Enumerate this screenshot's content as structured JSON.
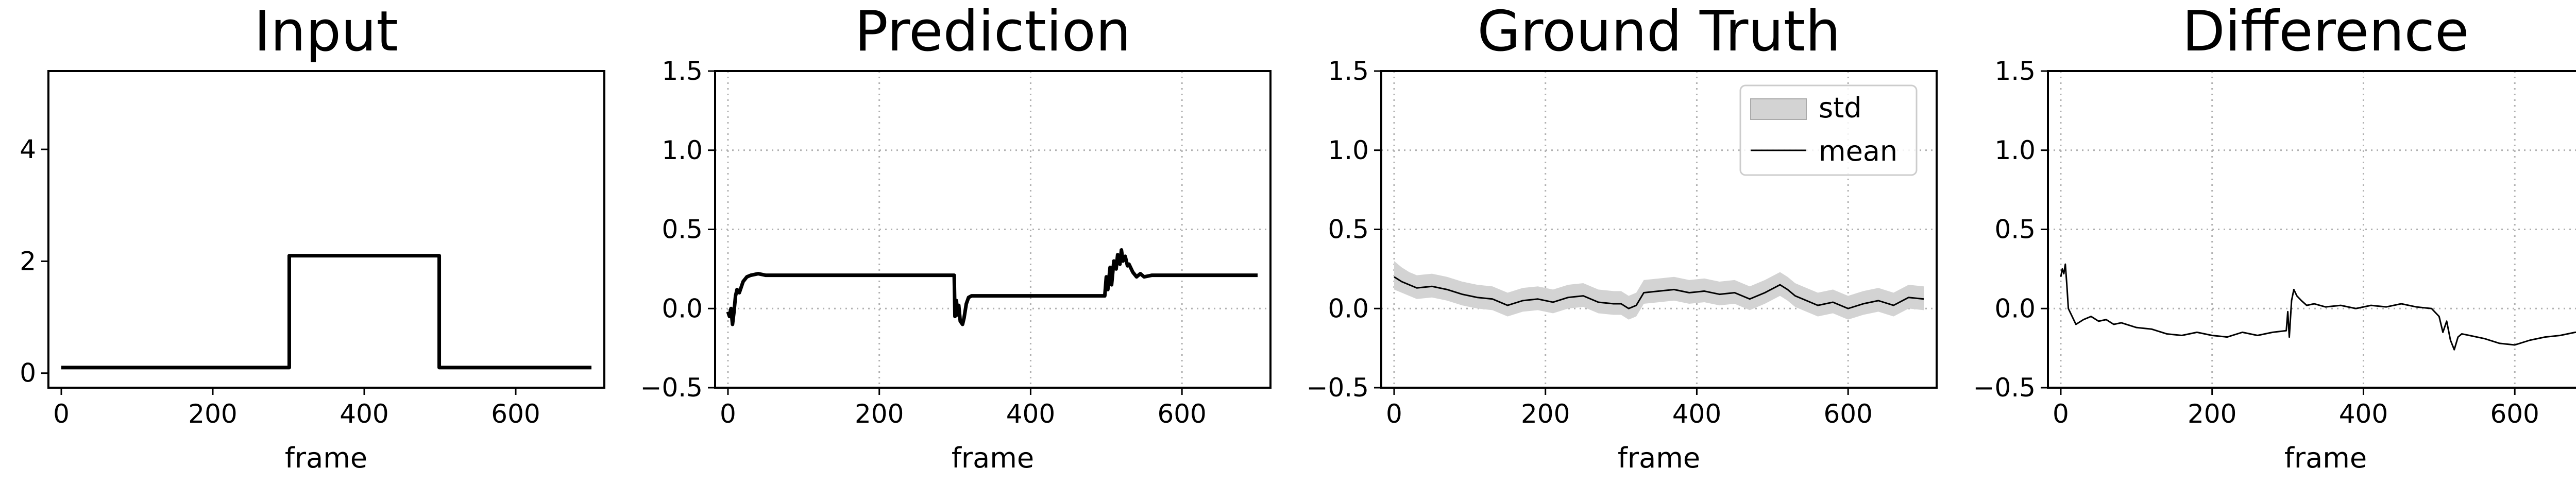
{
  "colors": {
    "line": "#000000",
    "band": "#d3d3d3",
    "grid": "#b0b0b0",
    "axes": "#000000"
  },
  "chart_data": [
    {
      "type": "line",
      "title": "Input",
      "xlabel": "frame",
      "ylabel": "",
      "grid": false,
      "xlim": [
        -17,
        717
      ],
      "ylim": [
        -0.26,
        5.4
      ],
      "xticks": [
        "0",
        "200",
        "400",
        "600"
      ],
      "yticks": [
        "0",
        "2",
        "4"
      ],
      "series": [
        {
          "x": [
            0,
            301,
            301,
            499,
            499,
            700
          ],
          "y": [
            0.1,
            0.1,
            2.1,
            2.1,
            0.1,
            0.1
          ]
        }
      ]
    },
    {
      "type": "line",
      "title": "Prediction",
      "xlabel": "frame",
      "ylabel": "",
      "grid": true,
      "xlim": [
        -17,
        717
      ],
      "ylim": [
        -0.5,
        1.5
      ],
      "xticks": [
        "0",
        "200",
        "400",
        "600"
      ],
      "yticks": [
        "−0.5",
        "0.0",
        "0.5",
        "1.0",
        "1.5"
      ],
      "series": [
        {
          "x": [
            0,
            2,
            4,
            6,
            8,
            10,
            12,
            15,
            20,
            25,
            30,
            40,
            50,
            100,
            200,
            299,
            300,
            302,
            303,
            305,
            307,
            310,
            312,
            315,
            318,
            322,
            330,
            350,
            400,
            498,
            500,
            502,
            505,
            507,
            510,
            513,
            515,
            518,
            520,
            522,
            525,
            528,
            530,
            535,
            540,
            545,
            550,
            560,
            580,
            600,
            650,
            700
          ],
          "y": [
            -0.02,
            -0.05,
            0.0,
            -0.1,
            -0.02,
            0.08,
            0.12,
            0.1,
            0.17,
            0.2,
            0.21,
            0.22,
            0.21,
            0.21,
            0.21,
            0.21,
            -0.05,
            0.05,
            -0.04,
            0.02,
            -0.08,
            -0.1,
            -0.06,
            0.03,
            0.07,
            0.08,
            0.08,
            0.08,
            0.08,
            0.08,
            0.2,
            0.12,
            0.26,
            0.15,
            0.3,
            0.25,
            0.34,
            0.28,
            0.37,
            0.3,
            0.33,
            0.27,
            0.28,
            0.23,
            0.2,
            0.22,
            0.2,
            0.21,
            0.21,
            0.21,
            0.21,
            0.21
          ]
        }
      ]
    },
    {
      "type": "area",
      "title": "Ground Truth",
      "xlabel": "frame",
      "ylabel": "",
      "grid": true,
      "xlim": [
        -17,
        717
      ],
      "ylim": [
        -0.5,
        1.5
      ],
      "xticks": [
        "0",
        "200",
        "400",
        "600"
      ],
      "yticks": [
        "−0.5",
        "0.0",
        "0.5",
        "1.0",
        "1.5"
      ],
      "legend": {
        "position": "top-right",
        "entries": [
          "std",
          "mean"
        ]
      },
      "x": [
        0,
        10,
        20,
        30,
        50,
        70,
        90,
        110,
        130,
        150,
        170,
        190,
        210,
        230,
        250,
        270,
        290,
        300,
        310,
        320,
        330,
        350,
        370,
        390,
        410,
        430,
        450,
        470,
        490,
        510,
        520,
        530,
        540,
        560,
        580,
        600,
        620,
        640,
        660,
        680,
        700
      ],
      "series": [
        {
          "name": "mean",
          "values": [
            0.2,
            0.17,
            0.15,
            0.13,
            0.14,
            0.12,
            0.09,
            0.07,
            0.06,
            0.02,
            0.05,
            0.06,
            0.04,
            0.07,
            0.08,
            0.04,
            0.03,
            0.03,
            0.0,
            0.02,
            0.1,
            0.11,
            0.12,
            0.1,
            0.11,
            0.09,
            0.1,
            0.06,
            0.1,
            0.15,
            0.12,
            0.08,
            0.06,
            0.02,
            0.04,
            0.0,
            0.03,
            0.05,
            0.02,
            0.07,
            0.06
          ]
        },
        {
          "name": "std",
          "lower": [
            0.12,
            0.1,
            0.08,
            0.06,
            0.07,
            0.05,
            0.02,
            0.0,
            -0.01,
            -0.05,
            -0.02,
            -0.01,
            -0.03,
            0.0,
            0.01,
            -0.03,
            -0.04,
            -0.04,
            -0.07,
            -0.05,
            0.03,
            0.04,
            0.05,
            0.03,
            0.04,
            0.02,
            0.03,
            -0.01,
            0.03,
            0.08,
            0.05,
            0.01,
            -0.01,
            -0.05,
            -0.03,
            -0.07,
            -0.04,
            -0.02,
            -0.05,
            0.0,
            -0.01
          ],
          "upper": [
            0.3,
            0.26,
            0.23,
            0.21,
            0.22,
            0.2,
            0.17,
            0.15,
            0.14,
            0.1,
            0.13,
            0.14,
            0.12,
            0.15,
            0.16,
            0.12,
            0.11,
            0.11,
            0.08,
            0.1,
            0.18,
            0.19,
            0.2,
            0.18,
            0.19,
            0.17,
            0.18,
            0.14,
            0.18,
            0.23,
            0.2,
            0.16,
            0.14,
            0.1,
            0.12,
            0.08,
            0.11,
            0.13,
            0.1,
            0.15,
            0.14
          ]
        }
      ]
    },
    {
      "type": "line",
      "title": "Difference",
      "xlabel": "frame",
      "ylabel": "",
      "grid": true,
      "xlim": [
        -17,
        717
      ],
      "ylim": [
        -0.5,
        1.5
      ],
      "xticks": [
        "0",
        "200",
        "400",
        "600"
      ],
      "yticks": [
        "−0.5",
        "0.0",
        "0.5",
        "1.0",
        "1.5"
      ],
      "series": [
        {
          "x": [
            0,
            2,
            4,
            6,
            8,
            10,
            15,
            20,
            30,
            40,
            50,
            60,
            70,
            80,
            100,
            120,
            140,
            160,
            180,
            200,
            220,
            240,
            260,
            280,
            298,
            300,
            302,
            305,
            308,
            312,
            318,
            325,
            335,
            350,
            370,
            390,
            410,
            430,
            450,
            470,
            490,
            500,
            505,
            510,
            515,
            520,
            525,
            530,
            540,
            560,
            580,
            600,
            620,
            640,
            660,
            680,
            700
          ],
          "y": [
            0.2,
            0.25,
            0.22,
            0.28,
            0.15,
            0.0,
            -0.05,
            -0.1,
            -0.07,
            -0.05,
            -0.08,
            -0.07,
            -0.1,
            -0.09,
            -0.12,
            -0.13,
            -0.16,
            -0.17,
            -0.15,
            -0.17,
            -0.18,
            -0.15,
            -0.17,
            -0.15,
            -0.14,
            -0.02,
            -0.18,
            0.05,
            0.12,
            0.08,
            0.05,
            0.02,
            0.03,
            0.01,
            0.02,
            0.0,
            0.02,
            0.01,
            0.03,
            0.01,
            0.0,
            -0.05,
            -0.15,
            -0.08,
            -0.2,
            -0.26,
            -0.18,
            -0.16,
            -0.17,
            -0.19,
            -0.22,
            -0.23,
            -0.2,
            -0.18,
            -0.17,
            -0.15,
            -0.16
          ]
        }
      ]
    }
  ]
}
